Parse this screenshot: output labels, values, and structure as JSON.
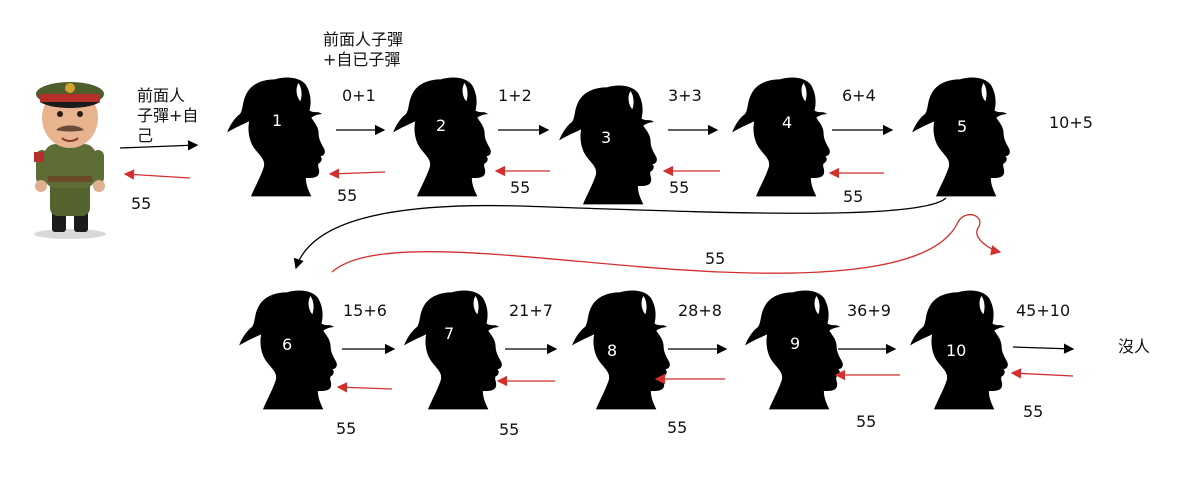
{
  "commander": {
    "label": "前面人\n子彈+自\n己",
    "return_value": "55"
  },
  "soldiers": [
    {
      "number": "1",
      "label": "0+1",
      "return_value": "55"
    },
    {
      "number": "2",
      "label": "1+2",
      "return_value": "55"
    },
    {
      "number": "3",
      "label": "3+3",
      "return_value": "55"
    },
    {
      "number": "4",
      "label": "6+4",
      "return_value": "55"
    },
    {
      "number": "5",
      "label": "10+5",
      "return_value": "55"
    },
    {
      "number": "6",
      "label": "15+6",
      "return_value": "55"
    },
    {
      "number": "7",
      "label": "21+7",
      "return_value": "55"
    },
    {
      "number": "8",
      "label": "28+8",
      "return_value": "55"
    },
    {
      "number": "9",
      "label": "36+9",
      "return_value": "55"
    },
    {
      "number": "10",
      "label": "45+10",
      "return_value": "55"
    }
  ],
  "top_note": "前面人子彈\n+自已子彈",
  "end_label": "沒人",
  "colors": {
    "forward_arrow": "#000000",
    "return_arrow": "#d32f2f",
    "silhouette": "#000000"
  }
}
